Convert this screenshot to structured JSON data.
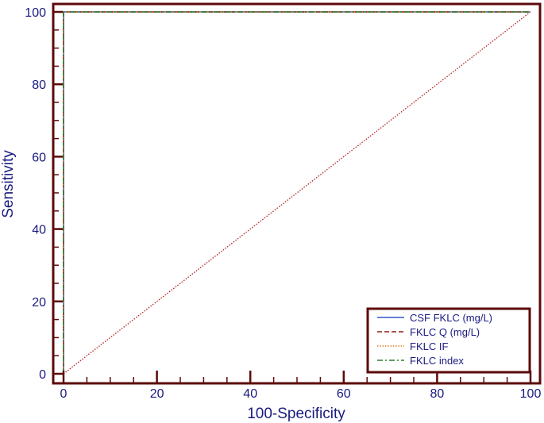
{
  "chart_data": {
    "type": "line",
    "xlabel": "100-Specificity",
    "ylabel": "Sensitivity",
    "xlim": [
      0,
      100
    ],
    "ylim": [
      0,
      100
    ],
    "xticks": [
      "0",
      "20",
      "40",
      "60",
      "80",
      "100"
    ],
    "yticks": [
      "0",
      "20",
      "40",
      "60",
      "80",
      "100"
    ],
    "grid": false,
    "legend_position": "bottom-right",
    "series": [
      {
        "name": "CSF FKLC (mg/L)",
        "color": "#3355cc",
        "style": "solid",
        "x": [
          0,
          0,
          100
        ],
        "y": [
          0,
          100,
          100
        ]
      },
      {
        "name": "FKLC Q (mg/L)",
        "color": "#8b1a1a",
        "style": "dashed",
        "x": [
          0,
          0,
          100
        ],
        "y": [
          0,
          100,
          100
        ]
      },
      {
        "name": "FKLC IF",
        "color": "#e07a1f",
        "style": "dotted",
        "x": [
          0,
          0,
          100
        ],
        "y": [
          0,
          100,
          100
        ]
      },
      {
        "name": "FKLC index",
        "color": "#2e7d32",
        "style": "dashdot",
        "x": [
          0,
          0,
          100
        ],
        "y": [
          0,
          100,
          100
        ]
      }
    ],
    "reference_line": {
      "color": "#b22222",
      "style": "dotted",
      "x": [
        0,
        100
      ],
      "y": [
        0,
        100
      ]
    },
    "frame_color": "#5c0a0a"
  }
}
